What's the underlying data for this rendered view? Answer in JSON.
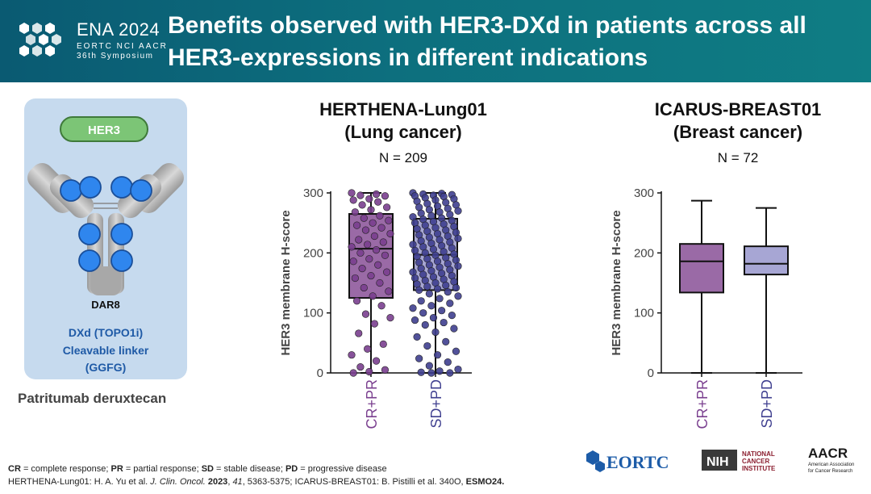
{
  "header": {
    "logo_title": "ENA 2024",
    "logo_sub": "EORTC NCI AACR",
    "logo_sub2": "36th Symposium",
    "title_line1": "Benefits observed with HER3-DXd in patients across all",
    "title_line2": "HER3-expressions in different indications"
  },
  "antibody": {
    "target_label": "HER3",
    "dar_label": "DAR8",
    "line1": "DXd (TOPO1i)",
    "line2": "Cleavable linker",
    "line3": "(GGFG)",
    "drug_name": "Patritumab deruxtecan"
  },
  "colors": {
    "header": "#0d6f7e",
    "crpr_fill": "#9a6aa6",
    "crpr_point": "#7a3f8f",
    "sdpd_fill": "#a7a6d4",
    "sdpd_point": "#3f3f8f",
    "crpr_tick": "#7a3f8f",
    "sdpd_tick": "#3f3f8f"
  },
  "chart_data": [
    {
      "type": "box",
      "title_line1": "HERTHENA-Lung01",
      "title_line2": "(Lung cancer)",
      "n_label": "N = 209",
      "ylabel": "HER3 membrane H-score",
      "ylim": [
        0,
        300
      ],
      "yticks": [
        0,
        100,
        200,
        300
      ],
      "categories": [
        "CR+PR",
        "SD+PD"
      ],
      "boxes": [
        {
          "name": "CR+PR",
          "min": 0,
          "q1": 125,
          "median": 207,
          "q3": 265,
          "max": 300
        },
        {
          "name": "SD+PD",
          "min": 0,
          "q1": 138,
          "median": 197,
          "q3": 257,
          "max": 300
        }
      ],
      "points": [
        [
          300,
          298,
          296,
          295,
          290,
          288,
          285,
          280,
          276,
          272,
          268,
          262,
          258,
          254,
          250,
          246,
          242,
          238,
          232,
          228,
          222,
          218,
          214,
          210,
          205,
          200,
          196,
          190,
          186,
          180,
          174,
          168,
          162,
          158,
          150,
          142,
          136,
          128,
          120,
          112,
          98,
          92,
          82,
          66,
          48,
          40,
          30,
          20,
          10,
          5,
          2,
          0
        ],
        [
          300,
          299,
          298,
          297,
          296,
          295,
          294,
          292,
          290,
          288,
          286,
          284,
          282,
          280,
          278,
          276,
          274,
          272,
          270,
          268,
          266,
          264,
          262,
          260,
          258,
          256,
          254,
          252,
          250,
          248,
          246,
          244,
          242,
          240,
          238,
          236,
          234,
          232,
          230,
          228,
          226,
          224,
          222,
          220,
          218,
          216,
          214,
          212,
          210,
          208,
          206,
          204,
          202,
          200,
          198,
          196,
          194,
          192,
          190,
          188,
          186,
          184,
          182,
          180,
          178,
          176,
          174,
          172,
          170,
          168,
          166,
          164,
          162,
          160,
          158,
          156,
          154,
          152,
          150,
          148,
          146,
          144,
          142,
          140,
          138,
          135,
          132,
          128,
          124,
          120,
          116,
          112,
          108,
          104,
          100,
          96,
          92,
          88,
          84,
          80,
          74,
          68,
          60,
          52,
          45,
          36,
          30,
          24,
          18,
          12,
          6,
          3,
          1,
          0,
          0
        ]
      ]
    },
    {
      "type": "box",
      "title_line1": "ICARUS-BREAST01",
      "title_line2": "(Breast cancer)",
      "n_label": "N = 72",
      "ylabel": "HER3 membrane H-score",
      "ylim": [
        0,
        300
      ],
      "yticks": [
        0,
        100,
        200,
        300
      ],
      "categories": [
        "CR+PR",
        "SD+PD"
      ],
      "boxes": [
        {
          "name": "CR+PR",
          "min": 0,
          "q1": 134,
          "median": 186,
          "q3": 215,
          "max": 287
        },
        {
          "name": "SD+PD",
          "min": 0,
          "q1": 164,
          "median": 182,
          "q3": 211,
          "max": 275
        }
      ]
    }
  ],
  "footer": {
    "line1": [
      {
        "b": "CR"
      },
      {
        "t": " = complete response; "
      },
      {
        "b": "PR"
      },
      {
        "t": " = partial response; "
      },
      {
        "b": "SD"
      },
      {
        "t": " = stable disease; "
      },
      {
        "b": "PD"
      },
      {
        "t": " = progressive disease"
      }
    ],
    "line2": [
      {
        "t": "HERTHENA-Lung01: H. A. Yu et al. "
      },
      {
        "i": "J. Clin. Oncol."
      },
      {
        "t": " "
      },
      {
        "b": "2023"
      },
      {
        "t": ", "
      },
      {
        "i": "41"
      },
      {
        "t": ", 5363-5375; ICARUS-BREAST01: B. Pistilli et al. 340O, "
      },
      {
        "b": "ESMO24."
      }
    ]
  },
  "logos": {
    "eortc": "EORTC",
    "nih": "NIH",
    "nci_line1": "NATIONAL",
    "nci_line2": "CANCER",
    "nci_line3": "INSTITUTE",
    "aacr": "AACR",
    "aacr_sub1": "American Association",
    "aacr_sub2": "for Cancer Research"
  }
}
